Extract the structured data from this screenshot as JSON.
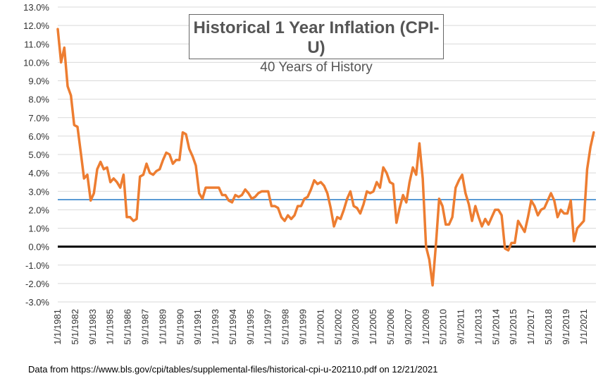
{
  "title": "Historical 1 Year Inflation (CPI-U)",
  "subtitle": "40 Years of History",
  "source_note": "Data from https://www.bls.gov/cpi/tables/supplemental-files/historical-cpi-u-202110.pdf on 12/21/2021",
  "chart_data": {
    "type": "line",
    "title": "Historical 1 Year Inflation (CPI-U)",
    "subtitle": "40 Years of History",
    "xlabel": "",
    "ylabel": "",
    "ylim": [
      -3,
      13
    ],
    "y_ticks": [
      "-3.0%",
      "-2.0%",
      "-1.0%",
      "0.0%",
      "1.0%",
      "2.0%",
      "3.0%",
      "4.0%",
      "5.0%",
      "6.0%",
      "7.0%",
      "8.0%",
      "9.0%",
      "10.0%",
      "11.0%",
      "12.0%",
      "13.0%"
    ],
    "x_ticks": [
      "1/1/1981",
      "5/1/1982",
      "9/1/1983",
      "1/1/1985",
      "5/1/1986",
      "9/1/1987",
      "1/1/1989",
      "5/1/1990",
      "9/1/1991",
      "1/1/1993",
      "5/1/1994",
      "9/1/1995",
      "1/1/1997",
      "5/1/1998",
      "9/1/1999",
      "1/1/2001",
      "5/1/2002",
      "9/1/2003",
      "1/1/2005",
      "5/1/2006",
      "9/1/2007",
      "1/1/2009",
      "5/1/2010",
      "9/1/2011",
      "1/1/2013",
      "5/1/2014",
      "9/1/2015",
      "1/1/2017",
      "5/1/2018",
      "9/1/2019",
      "1/1/2021"
    ],
    "grid": "horizontal",
    "legend": "none",
    "colors": {
      "series": "#ED7D31",
      "average": "#5B9BD5",
      "zero": "#000000",
      "grid": "#D9D9D9"
    },
    "series": [
      {
        "x": [
          "1/1/1981",
          "4/1/1981",
          "7/1/1981",
          "10/1/1981",
          "1/1/1982",
          "4/1/1982",
          "7/1/1982",
          "10/1/1982",
          "1/1/1983",
          "4/1/1983",
          "7/1/1983",
          "10/1/1983",
          "1/1/1984",
          "4/1/1984",
          "7/1/1984",
          "10/1/1984",
          "1/1/1985",
          "4/1/1985",
          "7/1/1985",
          "10/1/1985",
          "1/1/1986",
          "4/1/1986",
          "7/1/1986",
          "10/1/1986",
          "1/1/1987",
          "4/1/1987",
          "7/1/1987",
          "10/1/1987",
          "1/1/1988",
          "4/1/1988",
          "7/1/1988",
          "10/1/1988",
          "1/1/1989",
          "4/1/1989",
          "7/1/1989",
          "10/1/1989",
          "1/1/1990",
          "4/1/1990",
          "7/1/1990",
          "10/1/1990",
          "1/1/1991",
          "4/1/1991",
          "7/1/1991",
          "10/1/1991",
          "1/1/1992",
          "4/1/1992",
          "7/1/1992",
          "10/1/1992",
          "1/1/1993",
          "4/1/1993",
          "7/1/1993",
          "10/1/1993",
          "1/1/1994",
          "4/1/1994",
          "7/1/1994",
          "10/1/1994",
          "1/1/1995",
          "4/1/1995",
          "7/1/1995",
          "10/1/1995",
          "1/1/1996",
          "4/1/1996",
          "7/1/1996",
          "10/1/1996",
          "1/1/1997",
          "4/1/1997",
          "7/1/1997",
          "10/1/1997",
          "1/1/1998",
          "4/1/1998",
          "7/1/1998",
          "10/1/1998",
          "1/1/1999",
          "4/1/1999",
          "7/1/1999",
          "10/1/1999",
          "1/1/2000",
          "4/1/2000",
          "7/1/2000",
          "10/1/2000",
          "1/1/2001",
          "4/1/2001",
          "7/1/2001",
          "10/1/2001",
          "1/1/2002",
          "4/1/2002",
          "7/1/2002",
          "10/1/2002",
          "1/1/2003",
          "4/1/2003",
          "7/1/2003",
          "10/1/2003",
          "1/1/2004",
          "4/1/2004",
          "7/1/2004",
          "10/1/2004",
          "1/1/2005",
          "4/1/2005",
          "7/1/2005",
          "10/1/2005",
          "1/1/2006",
          "4/1/2006",
          "7/1/2006",
          "10/1/2006",
          "1/1/2007",
          "4/1/2007",
          "7/1/2007",
          "10/1/2007",
          "1/1/2008",
          "4/1/2008",
          "7/1/2008",
          "10/1/2008",
          "1/1/2009",
          "4/1/2009",
          "7/1/2009",
          "10/1/2009",
          "1/1/2010",
          "4/1/2010",
          "7/1/2010",
          "10/1/2010",
          "1/1/2011",
          "4/1/2011",
          "7/1/2011",
          "10/1/2011",
          "1/1/2012",
          "4/1/2012",
          "7/1/2012",
          "10/1/2012",
          "1/1/2013",
          "4/1/2013",
          "7/1/2013",
          "10/1/2013",
          "1/1/2014",
          "4/1/2014",
          "7/1/2014",
          "10/1/2014",
          "1/1/2015",
          "4/1/2015",
          "7/1/2015",
          "10/1/2015",
          "1/1/2016",
          "4/1/2016",
          "7/1/2016",
          "10/1/2016",
          "1/1/2017",
          "4/1/2017",
          "7/1/2017",
          "10/1/2017",
          "1/1/2018",
          "4/1/2018",
          "7/1/2018",
          "10/1/2018",
          "1/1/2019",
          "4/1/2019",
          "7/1/2019",
          "10/1/2019",
          "1/1/2020",
          "4/1/2020",
          "7/1/2020",
          "10/1/2020",
          "1/1/2021",
          "4/1/2021",
          "7/1/2021",
          "10/1/2021"
        ],
        "values": [
          11.8,
          10.0,
          10.8,
          8.7,
          8.2,
          6.6,
          6.5,
          5.1,
          3.7,
          3.9,
          2.5,
          2.9,
          4.2,
          4.6,
          4.2,
          4.3,
          3.5,
          3.7,
          3.5,
          3.2,
          3.9,
          1.6,
          1.6,
          1.4,
          1.5,
          3.8,
          3.9,
          4.5,
          4.0,
          3.9,
          4.1,
          4.2,
          4.7,
          5.1,
          5.0,
          4.5,
          4.7,
          4.7,
          6.2,
          6.1,
          5.3,
          4.9,
          4.4,
          2.9,
          2.6,
          3.2,
          3.2,
          3.2,
          3.2,
          3.2,
          2.8,
          2.8,
          2.5,
          2.4,
          2.8,
          2.7,
          2.8,
          3.1,
          2.9,
          2.6,
          2.7,
          2.9,
          3.0,
          3.0,
          3.0,
          2.2,
          2.2,
          2.1,
          1.6,
          1.4,
          1.7,
          1.5,
          1.7,
          2.2,
          2.2,
          2.6,
          2.7,
          3.1,
          3.6,
          3.4,
          3.5,
          3.3,
          2.9,
          2.1,
          1.1,
          1.6,
          1.5,
          2.0,
          2.6,
          3.0,
          2.2,
          2.1,
          1.8,
          2.3,
          3.0,
          2.9,
          3.0,
          3.5,
          3.2,
          4.3,
          4.0,
          3.5,
          3.4,
          1.3,
          2.1,
          2.8,
          2.4,
          3.5,
          4.3,
          3.9,
          5.6,
          3.7,
          0.0,
          -0.7,
          -2.1,
          0.1,
          2.6,
          2.2,
          1.2,
          1.2,
          1.6,
          3.2,
          3.6,
          3.9,
          2.9,
          2.3,
          1.4,
          2.2,
          1.6,
          1.1,
          1.5,
          1.2,
          1.6,
          2.0,
          2.0,
          1.7,
          -0.1,
          -0.2,
          0.2,
          0.2,
          1.4,
          1.1,
          0.8,
          1.6,
          2.5,
          2.2,
          1.7,
          2.0,
          2.1,
          2.5,
          2.9,
          2.5,
          1.6,
          2.0,
          1.8,
          1.8,
          2.5,
          0.3,
          1.0,
          1.2,
          1.4,
          4.2,
          5.4,
          6.2
        ]
      }
    ],
    "reference_lines": [
      {
        "y": 2.55,
        "color": "#5B9BD5"
      },
      {
        "y": 0.0,
        "color": "#000000"
      }
    ]
  }
}
